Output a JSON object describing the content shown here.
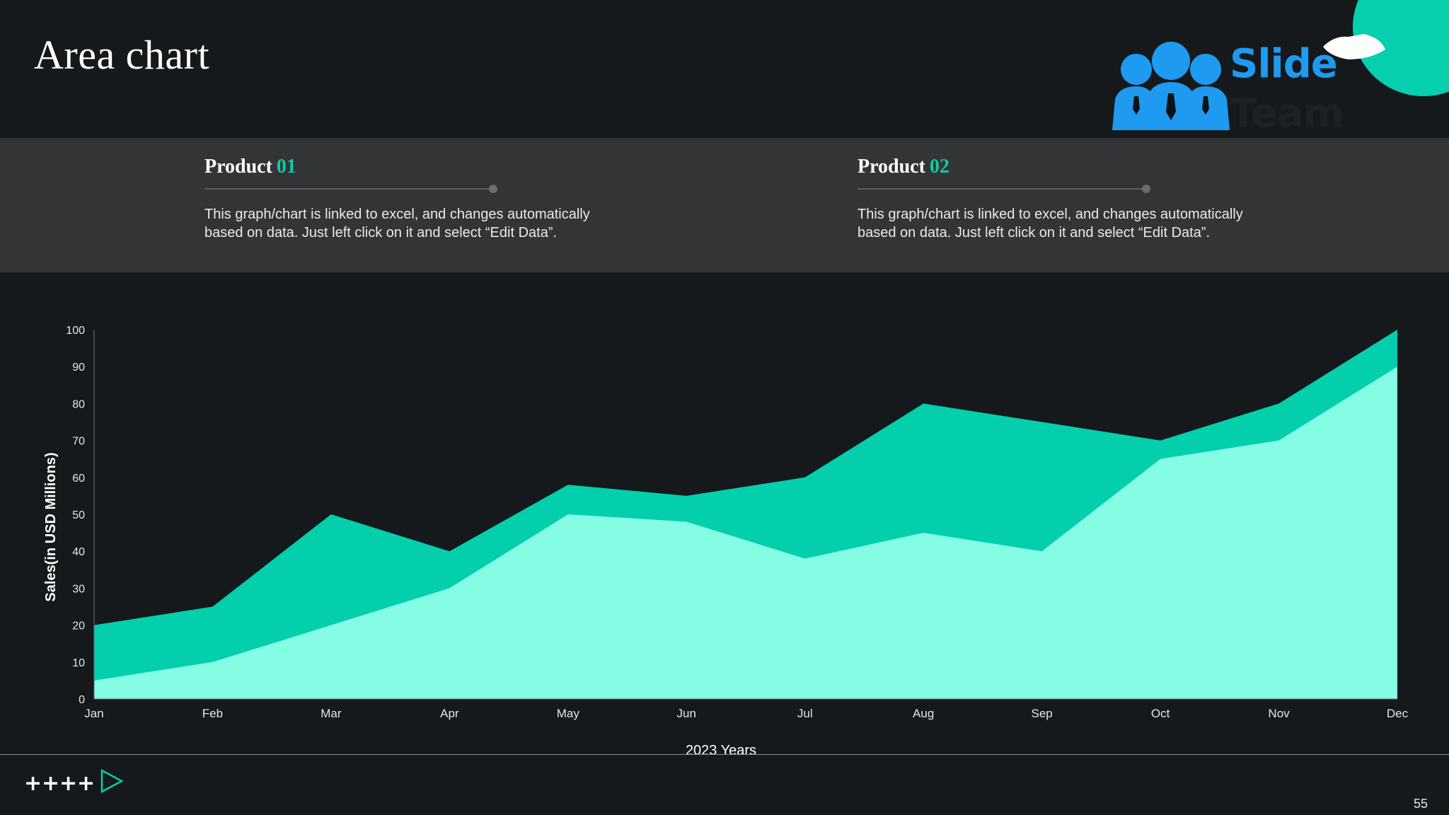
{
  "page": {
    "title": "Area chart",
    "page_number": "55"
  },
  "logo": {
    "text_1": "Slide",
    "text_2": "Team"
  },
  "products": [
    {
      "label": "Product",
      "number": "01",
      "description": "This graph/chart is linked to excel, and changes automatically based on data. Just left click on it and select “Edit Data”."
    },
    {
      "label": "Product",
      "number": "02",
      "description": "This graph/chart is linked to excel, and changes automatically based on data. Just left click on it and select “Edit Data”."
    }
  ],
  "colors": {
    "background": "#15191b",
    "band": "#323436",
    "accent": "#05cfad",
    "series_light": "#85fde5",
    "series_dark": "#03cfad",
    "logo_blue": "#1e9af0"
  },
  "chart_data": {
    "type": "area",
    "title": "",
    "xlabel": "2023 Years",
    "ylabel": "Sales(in USD Millions)",
    "categories": [
      "Jan",
      "Feb",
      "Mar",
      "Apr",
      "May",
      "Jun",
      "Jul",
      "Aug",
      "Sep",
      "Oct",
      "Nov",
      "Dec"
    ],
    "ylim": [
      0,
      100
    ],
    "yticks": [
      0,
      10,
      20,
      30,
      40,
      50,
      60,
      70,
      80,
      90,
      100
    ],
    "grid": false,
    "legend": "none",
    "series": [
      {
        "values": [
          20,
          25,
          50,
          40,
          58,
          55,
          60,
          80,
          75,
          70,
          80,
          100
        ],
        "color": "#03cfad"
      },
      {
        "values": [
          5,
          10,
          20,
          30,
          50,
          48,
          38,
          45,
          40,
          65,
          70,
          90
        ],
        "color": "#85fde5"
      }
    ]
  },
  "footer": {
    "icons": [
      "plus-icon",
      "plus-icon",
      "plus-icon",
      "plus-icon",
      "play-icon"
    ]
  }
}
